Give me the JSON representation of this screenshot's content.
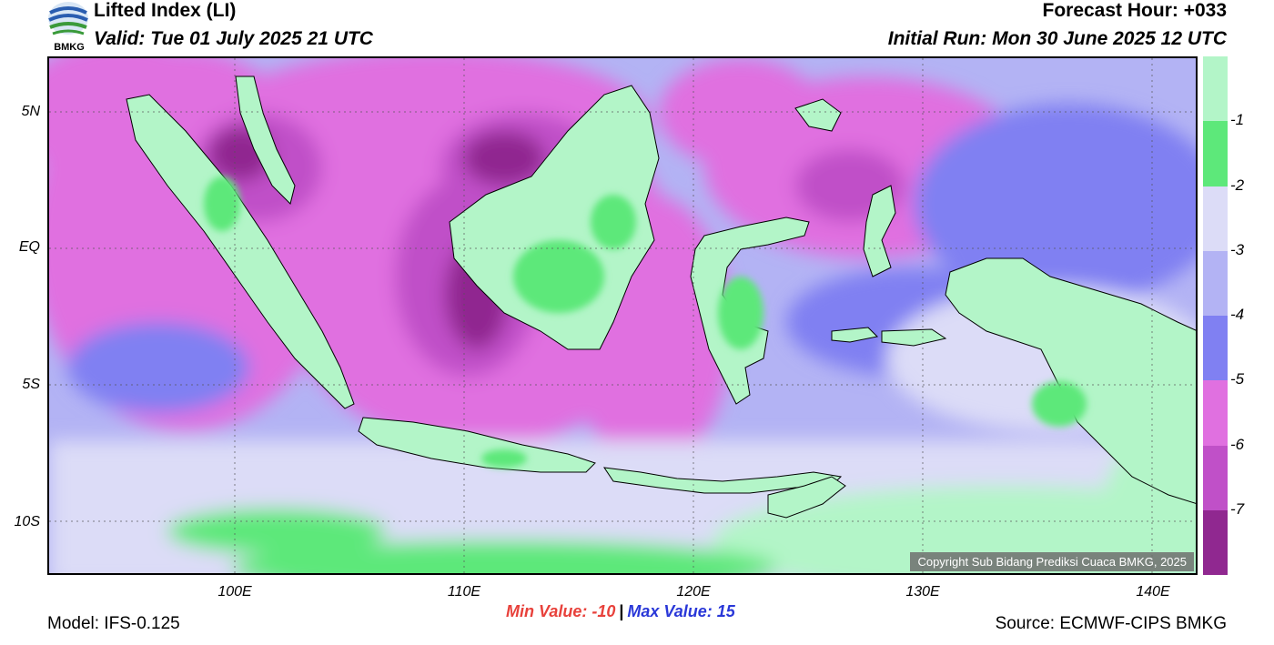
{
  "header": {
    "title": "Lifted Index (LI)",
    "valid": "Valid: Tue 01 July 2025 21 UTC",
    "forecast_hour": "Forecast Hour: +033",
    "initial_run": "Initial Run: Mon 30 June 2025 12 UTC"
  },
  "logo": {
    "text": "BMKG",
    "icon": "bmkg-logo-icon"
  },
  "map": {
    "lat_labels": [
      "5N",
      "EQ",
      "5S",
      "10S"
    ],
    "lon_labels": [
      "100E",
      "110E",
      "120E",
      "130E",
      "140E"
    ],
    "copyright": "Copyright Sub Bidang Prediksi Cuaca BMKG, 2025"
  },
  "colorbar": {
    "labels": [
      "-1",
      "-2",
      "-3",
      "-4",
      "-5",
      "-6",
      "-7"
    ],
    "colors": [
      "#b3f5c8",
      "#5de87a",
      "#dcdcf7",
      "#b3b3f4",
      "#8080f2",
      "#e070e0",
      "#c050c8",
      "#902890"
    ]
  },
  "stats": {
    "min_label": "Min Value: -10",
    "max_label": "Max Value:  15",
    "separator": "|"
  },
  "footer": {
    "model": "Model: IFS-0.125",
    "source": "Source: ECMWF-CIPS BMKG"
  }
}
